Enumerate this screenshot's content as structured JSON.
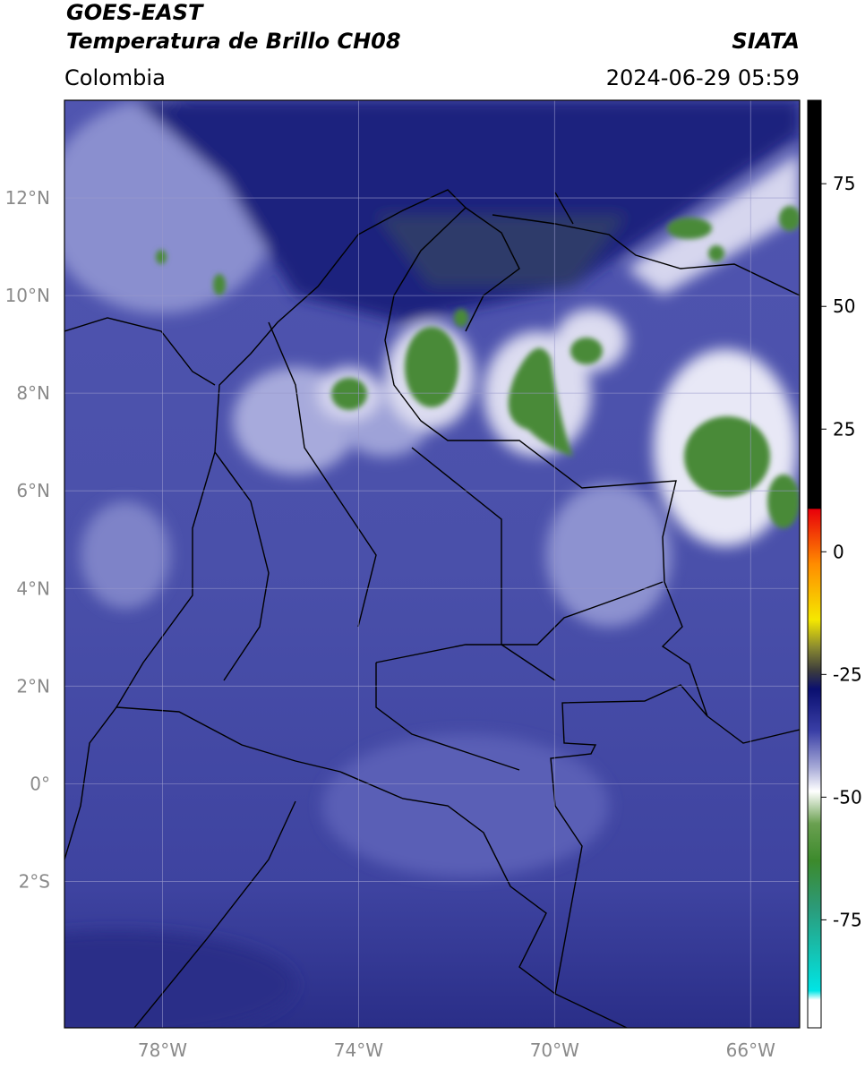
{
  "header": {
    "title": "GOES-EAST",
    "subtitle": "Temperatura de Brillo CH08",
    "source": "SIATA",
    "region": "Colombia",
    "datetime": "2024-06-29 05:59"
  },
  "map": {
    "xlim": [
      -80,
      -65
    ],
    "ylim": [
      -5,
      14
    ],
    "xticks": [
      {
        "value": -78,
        "label": "78°W"
      },
      {
        "value": -74,
        "label": "74°W"
      },
      {
        "value": -70,
        "label": "70°W"
      },
      {
        "value": -66,
        "label": "66°W"
      }
    ],
    "yticks": [
      {
        "value": 12,
        "label": "12°N"
      },
      {
        "value": 10,
        "label": "10°N"
      },
      {
        "value": 8,
        "label": "8°N"
      },
      {
        "value": 6,
        "label": "6°N"
      },
      {
        "value": 4,
        "label": "4°N"
      },
      {
        "value": 2,
        "label": "2°N"
      },
      {
        "value": 0,
        "label": "0°"
      },
      {
        "value": -2,
        "label": "2°S"
      }
    ],
    "grid": true
  },
  "colorbar": {
    "lim": [
      -97,
      92
    ],
    "ticks": [
      75,
      50,
      25,
      0,
      -25,
      -50,
      -75
    ]
  }
}
